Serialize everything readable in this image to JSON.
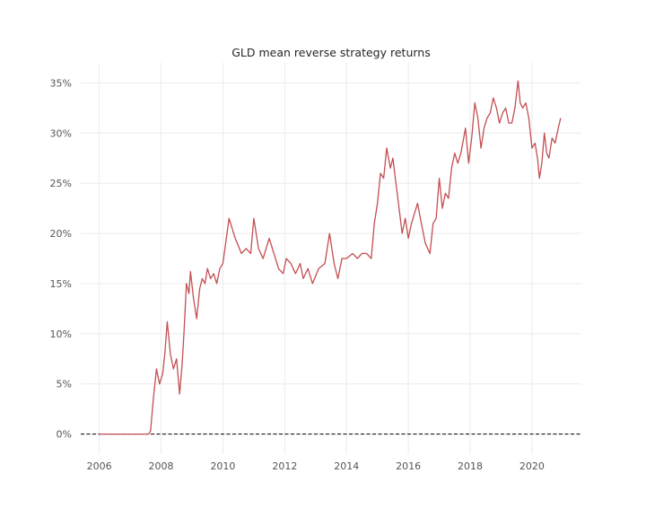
{
  "chart_data": {
    "type": "line",
    "title": "GLD mean reverse strategy returns",
    "xlabel": "",
    "ylabel": "",
    "xlim": [
      2005.4,
      2021.6
    ],
    "ylim": [
      -2,
      37
    ],
    "x_ticks": [
      2006,
      2008,
      2010,
      2012,
      2014,
      2016,
      2018,
      2020
    ],
    "x_tick_labels": [
      "2006",
      "2008",
      "2010",
      "2012",
      "2014",
      "2016",
      "2018",
      "2020"
    ],
    "y_ticks": [
      0,
      5,
      10,
      15,
      20,
      25,
      30,
      35
    ],
    "y_tick_labels": [
      "0%",
      "5%",
      "10%",
      "15%",
      "20%",
      "25%",
      "30%",
      "35%"
    ],
    "grid": true,
    "reference_line": {
      "y": 0,
      "style": "dashed",
      "color": "#000000"
    },
    "series": [
      {
        "color": "#c44e52",
        "x": [
          2006.0,
          2006.5,
          2007.0,
          2007.3,
          2007.6,
          2007.66,
          2007.75,
          2007.85,
          2007.95,
          2008.05,
          2008.12,
          2008.2,
          2008.3,
          2008.4,
          2008.5,
          2008.6,
          2008.68,
          2008.74,
          2008.82,
          2008.9,
          2008.95,
          2009.05,
          2009.15,
          2009.25,
          2009.33,
          2009.42,
          2009.5,
          2009.6,
          2009.7,
          2009.8,
          2009.9,
          2010.0,
          2010.2,
          2010.4,
          2010.6,
          2010.75,
          2010.9,
          2011.0,
          2011.15,
          2011.3,
          2011.5,
          2011.65,
          2011.8,
          2011.95,
          2012.05,
          2012.2,
          2012.35,
          2012.5,
          2012.6,
          2012.75,
          2012.9,
          2013.1,
          2013.3,
          2013.45,
          2013.6,
          2013.72,
          2013.85,
          2014.0,
          2014.2,
          2014.35,
          2014.5,
          2014.65,
          2014.8,
          2014.9,
          2015.0,
          2015.1,
          2015.2,
          2015.3,
          2015.42,
          2015.5,
          2015.6,
          2015.7,
          2015.8,
          2015.9,
          2016.0,
          2016.1,
          2016.2,
          2016.3,
          2016.42,
          2016.55,
          2016.7,
          2016.8,
          2016.9,
          2017.0,
          2017.1,
          2017.2,
          2017.3,
          2017.4,
          2017.5,
          2017.6,
          2017.7,
          2017.85,
          2017.95,
          2018.05,
          2018.15,
          2018.25,
          2018.35,
          2018.45,
          2018.55,
          2018.65,
          2018.75,
          2018.85,
          2018.95,
          2019.05,
          2019.15,
          2019.25,
          2019.35,
          2019.45,
          2019.55,
          2019.62,
          2019.7,
          2019.8,
          2019.9,
          2020.0,
          2020.1,
          2020.18,
          2020.24,
          2020.32,
          2020.4,
          2020.48,
          2020.55,
          2020.65,
          2020.75,
          2020.85,
          2020.93
        ],
        "y": [
          0,
          0,
          0,
          0,
          0,
          0.3,
          3.5,
          6.5,
          5.0,
          6.0,
          8.0,
          11.2,
          8.0,
          6.5,
          7.5,
          4.0,
          7.0,
          10.0,
          15.0,
          14.0,
          16.2,
          13.5,
          11.5,
          14.5,
          15.5,
          15.0,
          16.5,
          15.5,
          16.0,
          15.0,
          16.5,
          17.0,
          21.5,
          19.5,
          18.0,
          18.5,
          18.0,
          21.5,
          18.5,
          17.5,
          19.5,
          18.0,
          16.5,
          16.0,
          17.5,
          17.0,
          16.0,
          17.0,
          15.5,
          16.5,
          15.0,
          16.5,
          17.0,
          20.0,
          17.0,
          15.5,
          17.5,
          17.5,
          18.0,
          17.5,
          18.0,
          18.0,
          17.5,
          21.0,
          23.0,
          26.0,
          25.5,
          28.5,
          26.5,
          27.5,
          25.0,
          22.5,
          20.0,
          21.5,
          19.5,
          21.0,
          22.0,
          23.0,
          21.0,
          19.0,
          18.0,
          21.0,
          21.5,
          25.5,
          22.5,
          24.0,
          23.5,
          26.5,
          28.0,
          27.0,
          28.0,
          30.5,
          27.0,
          29.5,
          33.0,
          31.5,
          28.5,
          30.5,
          31.5,
          32.0,
          33.5,
          32.5,
          31.0,
          32.0,
          32.5,
          31.0,
          31.0,
          32.5,
          35.2,
          33.0,
          32.5,
          33.0,
          31.5,
          28.5,
          29.0,
          27.5,
          25.5,
          27.0,
          30.0,
          28.0,
          27.5,
          29.5,
          29.0,
          30.5,
          31.5
        ]
      }
    ]
  }
}
